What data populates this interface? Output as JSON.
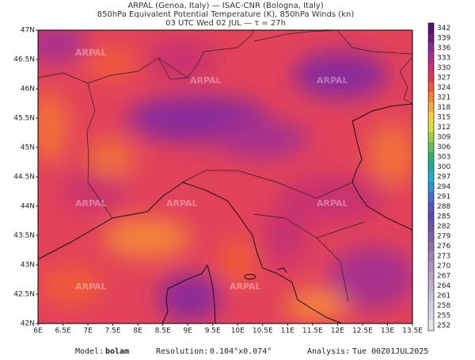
{
  "header": {
    "line1": "ARPAL (Genoa, Italy)  —  ISAC-CNR (Bologna, Italy)",
    "line2": "850hPa Equivalent Potential Temperature (K), 850hPa Winds (kn)",
    "line3": "03 UTC Wed 02 JUL  —  τ = 27h"
  },
  "map": {
    "x_labels": [
      "6E",
      "6.5E",
      "7E",
      "7.5E",
      "8E",
      "8.5E",
      "9E",
      "9.5E",
      "10E",
      "10.5E",
      "11E",
      "11.5E",
      "12E",
      "12.5E",
      "13E",
      "13.5E"
    ],
    "y_labels": [
      "47N",
      "46.5N",
      "46N",
      "45.5N",
      "45N",
      "44.5N",
      "44N",
      "43.5N",
      "43N",
      "42.5N",
      "42N"
    ],
    "watermark": "ARPAL"
  },
  "colorbar": {
    "labels": [
      "342",
      "339",
      "336",
      "333",
      "330",
      "327",
      "324",
      "321",
      "318",
      "315",
      "312",
      "309",
      "306",
      "303",
      "300",
      "297",
      "294",
      "291",
      "288",
      "285",
      "282",
      "279",
      "276",
      "273",
      "270",
      "267",
      "264",
      "261",
      "258",
      "255",
      "252"
    ],
    "colors": [
      "#5a1070",
      "#701a88",
      "#8a2a9a",
      "#a8308c",
      "#c83070",
      "#e03c50",
      "#f05a38",
      "#f4843a",
      "#f8a840",
      "#f8d040",
      "#d8e040",
      "#a0d040",
      "#60c050",
      "#30b070",
      "#20a8a0",
      "#20b0d0",
      "#3090d8",
      "#4070d0",
      "#5058c0",
      "#6048b0",
      "#7050a8",
      "#8060a8",
      "#9070b0",
      "#a080b8",
      "#b090c0",
      "#b8a0c8",
      "#c0b0d0",
      "#c8c0d8",
      "#d0d0e0",
      "#d8d8e8",
      "#e8e8f0"
    ]
  },
  "footer": {
    "model_label": "Model:",
    "model": "bolam",
    "resolution_label": "Resolution:",
    "resolution": "0.104°x0.074°",
    "analysis_label": "Analysis:",
    "analysis": "Tue 00Z01JUL2025"
  }
}
